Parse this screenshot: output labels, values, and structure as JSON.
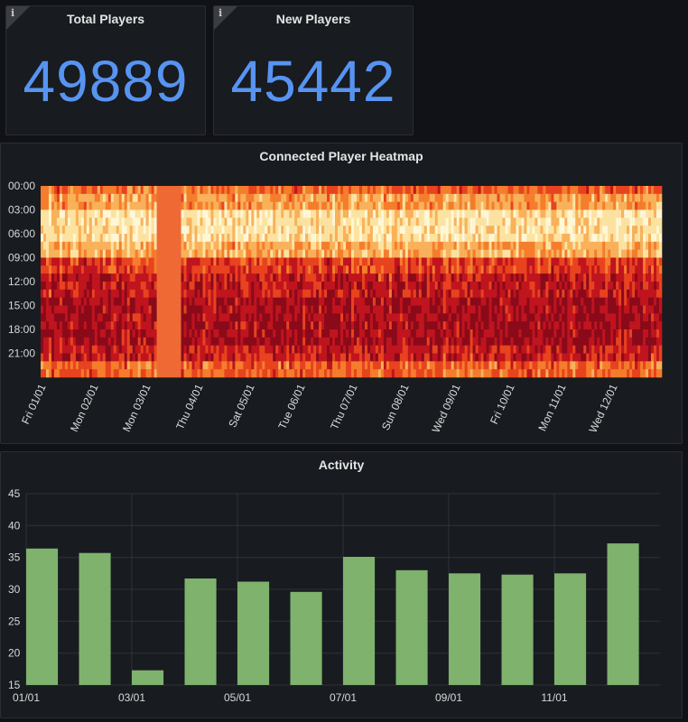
{
  "stats": [
    {
      "title": "Total Players",
      "value": "49889",
      "info_icon": "info-icon"
    },
    {
      "title": "New Players",
      "value": "45442",
      "info_icon": "info-icon"
    }
  ],
  "heatmap_panel": {
    "title": "Connected Player Heatmap"
  },
  "activity_panel": {
    "title": "Activity"
  },
  "colors": {
    "background": "#111217",
    "panel": "#181b1f",
    "stat_value": "#5794f2",
    "bar": "#7eb26d",
    "grid": "#2f3238"
  },
  "chart_data": [
    {
      "type": "heatmap",
      "title": "Connected Player Heatmap",
      "y_ticks": [
        "00:00",
        "03:00",
        "06:00",
        "09:00",
        "12:00",
        "15:00",
        "18:00",
        "21:00"
      ],
      "x_ticks": [
        "Fri 01/01",
        "Mon 02/01",
        "Mon 03/01",
        "Thu 04/01",
        "Sat 05/01",
        "Tue 06/01",
        "Thu 07/01",
        "Sun 08/01",
        "Wed 09/01",
        "Fri 10/01",
        "Mon 11/01",
        "Wed 12/01"
      ],
      "color_scale": [
        "#8b0a1a",
        "#c0141e",
        "#e8431f",
        "#f57d2c",
        "#f9b15a",
        "#fde3a1",
        "#fff7d6"
      ]
    },
    {
      "type": "bar",
      "title": "Activity",
      "categories": [
        "01/01",
        "02/01",
        "03/01",
        "04/01",
        "05/01",
        "06/01",
        "07/01",
        "08/01",
        "09/01",
        "10/01",
        "11/01",
        "12/01"
      ],
      "values": [
        36.4,
        35.7,
        17.3,
        31.7,
        31.2,
        29.6,
        35.1,
        33.0,
        32.5,
        32.3,
        32.5,
        37.2
      ],
      "x_tick_labels": [
        "01/01",
        "03/01",
        "05/01",
        "07/01",
        "09/01",
        "11/01"
      ],
      "y_ticks": [
        "15",
        "20",
        "25",
        "30",
        "35",
        "40",
        "45"
      ],
      "ylim": [
        15,
        45
      ],
      "grid": true,
      "bar_color": "#7eb26d"
    }
  ]
}
